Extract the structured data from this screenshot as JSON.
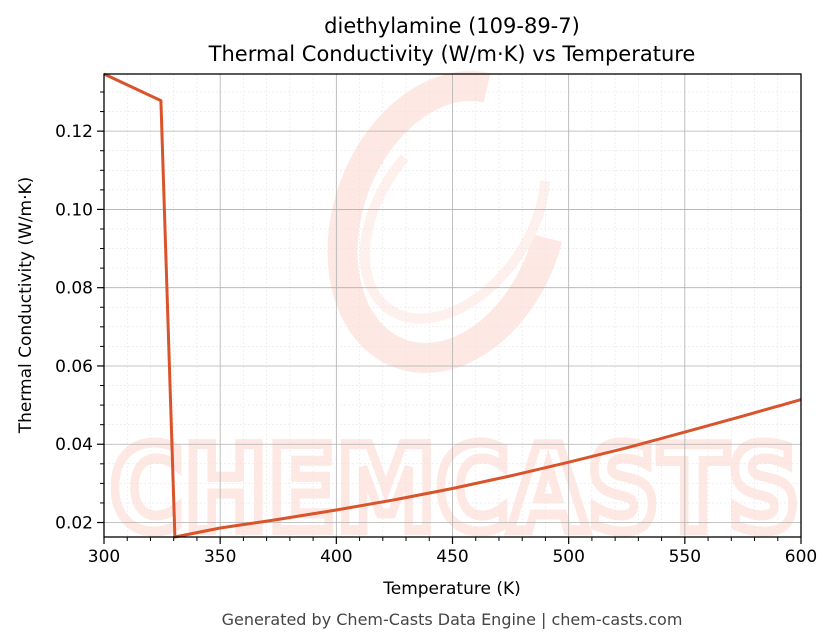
{
  "footer": "Generated by Chem-Casts Data Engine | chem-casts.com",
  "watermark": {
    "text": "CHEMCASTS",
    "color": "#fbd5cc"
  },
  "chart_data": {
    "type": "line",
    "title": "diethylamine (109-89-7)",
    "subtitle": "Thermal Conductivity (W/m·K) vs Temperature",
    "xlabel": "Temperature (K)",
    "ylabel": "Thermal Conductivity (W/m·K)",
    "xlim": [
      300,
      600
    ],
    "ylim": [
      0.0163,
      0.1346
    ],
    "xticks": [
      300,
      350,
      400,
      450,
      500,
      550,
      600
    ],
    "xtick_labels": [
      "300",
      "350",
      "400",
      "450",
      "500",
      "550",
      "600"
    ],
    "yticks": [
      0.02,
      0.04,
      0.06,
      0.08,
      0.1,
      0.12
    ],
    "ytick_labels": [
      "0.02",
      "0.04",
      "0.06",
      "0.08",
      "0.10",
      "0.12"
    ],
    "grid": true,
    "line_color": "#d9532b",
    "series": [
      {
        "x": [
          300,
          324.5,
          330.5,
          350,
          375,
          400,
          425,
          450,
          475,
          500,
          525,
          550,
          575,
          600
        ],
        "values": [
          0.1346,
          0.1278,
          0.0163,
          0.0186,
          0.0208,
          0.0232,
          0.0258,
          0.0287,
          0.0319,
          0.0354,
          0.0391,
          0.0431,
          0.0472,
          0.0514
        ]
      }
    ]
  }
}
